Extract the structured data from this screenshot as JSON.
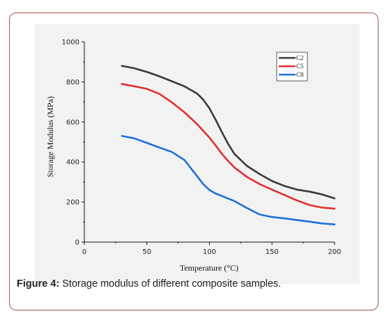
{
  "chart_data": {
    "type": "line",
    "xlabel": "Temperature (°C)",
    "ylabel": "Storage Modulus (MPa)",
    "xlim": [
      0,
      200
    ],
    "ylim": [
      0,
      1000
    ],
    "x_ticks": [
      0,
      50,
      100,
      150,
      200
    ],
    "y_ticks": [
      0,
      200,
      400,
      600,
      800,
      1000
    ],
    "legend_position": "top-right",
    "series": [
      {
        "name": "C2",
        "color": "#3a3a3a",
        "x": [
          30,
          40,
          50,
          60,
          70,
          80,
          90,
          95,
          100,
          105,
          110,
          115,
          120,
          130,
          140,
          150,
          160,
          170,
          180,
          190,
          200
        ],
        "y": [
          880,
          868,
          850,
          828,
          803,
          778,
          742,
          712,
          668,
          610,
          548,
          490,
          440,
          380,
          340,
          305,
          280,
          262,
          252,
          238,
          218
        ]
      },
      {
        "name": "C5",
        "color": "#e03030",
        "x": [
          30,
          40,
          50,
          60,
          70,
          80,
          90,
          100,
          105,
          110,
          115,
          120,
          130,
          140,
          150,
          160,
          170,
          180,
          190,
          200
        ],
        "y": [
          790,
          778,
          765,
          740,
          698,
          648,
          590,
          522,
          482,
          440,
          405,
          372,
          325,
          290,
          262,
          235,
          208,
          185,
          172,
          167
        ]
      },
      {
        "name": "C8",
        "color": "#2070d8",
        "x": [
          30,
          40,
          50,
          60,
          70,
          80,
          85,
          90,
          95,
          100,
          105,
          110,
          120,
          130,
          140,
          150,
          160,
          170,
          180,
          190,
          200
        ],
        "y": [
          530,
          518,
          495,
          472,
          450,
          410,
          370,
          330,
          290,
          260,
          242,
          230,
          205,
          170,
          138,
          125,
          118,
          110,
          102,
          93,
          88
        ]
      }
    ]
  },
  "caption": {
    "label": "Figure 4:",
    "text": " Storage modulus of different composite samples."
  }
}
